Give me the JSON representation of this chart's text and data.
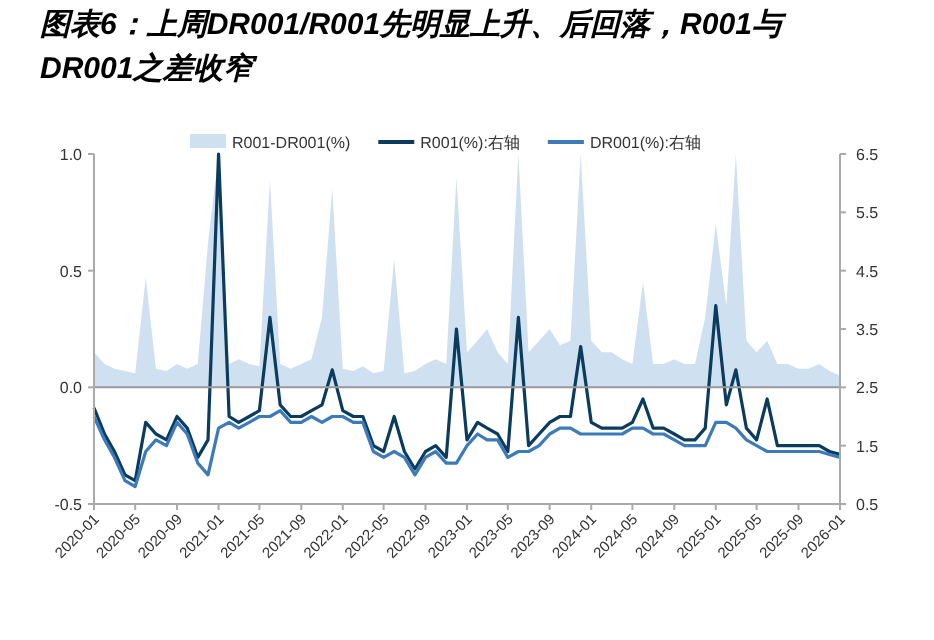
{
  "chart_data": {
    "type": "line",
    "title": "图表6：上周DR001/R001先明显上升、后回落，R001与DR001之差收窄",
    "x": [
      "2020-01",
      "2020-02",
      "2020-03",
      "2020-04",
      "2020-05",
      "2020-06",
      "2020-07",
      "2020-08",
      "2020-09",
      "2020-10",
      "2020-11",
      "2020-12",
      "2021-01",
      "2021-02",
      "2021-03",
      "2021-04",
      "2021-05",
      "2021-06",
      "2021-07",
      "2021-08",
      "2021-09",
      "2021-10",
      "2021-11",
      "2021-12",
      "2022-01",
      "2022-02",
      "2022-03",
      "2022-04",
      "2022-05",
      "2022-06",
      "2022-07",
      "2022-08",
      "2022-09",
      "2022-10",
      "2022-11",
      "2022-12",
      "2023-01",
      "2023-02",
      "2023-03",
      "2023-04",
      "2023-05",
      "2023-06",
      "2023-07",
      "2023-08",
      "2023-09",
      "2023-10",
      "2023-11",
      "2023-12",
      "2024-01",
      "2024-02",
      "2024-03",
      "2024-04",
      "2024-05",
      "2024-06",
      "2024-07",
      "2024-08",
      "2024-09",
      "2024-10",
      "2024-11",
      "2024-12",
      "2025-01",
      "2025-02",
      "2025-03",
      "2025-04",
      "2025-05",
      "2025-06",
      "2025-07",
      "2025-08",
      "2025-09",
      "2025-10",
      "2025-11",
      "2025-12",
      "2026-01"
    ],
    "series": [
      {
        "name": "R001-DR001(%)",
        "type": "area",
        "axis": "y",
        "color": "#cfe0f1",
        "values": [
          0.15,
          0.1,
          0.08,
          0.07,
          0.06,
          0.47,
          0.08,
          0.07,
          0.1,
          0.08,
          0.1,
          0.62,
          1.0,
          0.1,
          0.12,
          0.1,
          0.09,
          0.89,
          0.1,
          0.08,
          0.1,
          0.12,
          0.3,
          0.85,
          0.08,
          0.07,
          0.09,
          0.06,
          0.07,
          0.55,
          0.06,
          0.07,
          0.1,
          0.12,
          0.1,
          0.9,
          0.15,
          0.2,
          0.25,
          0.15,
          0.1,
          1.0,
          0.15,
          0.2,
          0.25,
          0.18,
          0.2,
          1.0,
          0.2,
          0.15,
          0.15,
          0.12,
          0.1,
          0.45,
          0.1,
          0.1,
          0.12,
          0.1,
          0.1,
          0.3,
          0.7,
          0.35,
          1.0,
          0.2,
          0.15,
          0.2,
          0.1,
          0.1,
          0.08,
          0.08,
          0.1,
          0.07,
          0.05
        ]
      },
      {
        "name": "R001(%):右轴",
        "axis": "y2",
        "color": "#0b3c5d",
        "values": [
          2.15,
          1.7,
          1.4,
          1.0,
          0.9,
          1.9,
          1.7,
          1.6,
          2.0,
          1.8,
          1.3,
          1.6,
          6.5,
          2.0,
          1.9,
          2.0,
          2.1,
          3.7,
          2.2,
          2.0,
          2.0,
          2.1,
          2.2,
          2.8,
          2.1,
          2.0,
          2.0,
          1.5,
          1.4,
          2.0,
          1.4,
          1.1,
          1.4,
          1.5,
          1.3,
          3.5,
          1.6,
          1.9,
          1.8,
          1.7,
          1.4,
          3.7,
          1.5,
          1.7,
          1.9,
          2.0,
          2.0,
          3.2,
          1.9,
          1.8,
          1.8,
          1.8,
          1.9,
          2.3,
          1.8,
          1.8,
          1.7,
          1.6,
          1.6,
          1.8,
          3.9,
          2.2,
          2.8,
          1.8,
          1.6,
          2.3,
          1.5,
          1.5,
          1.5,
          1.5,
          1.5,
          1.4,
          1.35
        ]
      },
      {
        "name": "DR001(%):右轴",
        "axis": "y2",
        "color": "#3d7ab8",
        "values": [
          2.0,
          1.6,
          1.3,
          0.9,
          0.8,
          1.4,
          1.6,
          1.5,
          1.9,
          1.7,
          1.2,
          1.0,
          1.8,
          1.9,
          1.8,
          1.9,
          2.0,
          2.0,
          2.1,
          1.9,
          1.9,
          2.0,
          1.9,
          2.0,
          2.0,
          1.9,
          1.9,
          1.4,
          1.3,
          1.4,
          1.3,
          1.0,
          1.3,
          1.4,
          1.2,
          1.2,
          1.5,
          1.7,
          1.6,
          1.6,
          1.3,
          1.4,
          1.4,
          1.5,
          1.7,
          1.8,
          1.8,
          1.7,
          1.7,
          1.7,
          1.7,
          1.7,
          1.8,
          1.8,
          1.7,
          1.7,
          1.6,
          1.5,
          1.5,
          1.5,
          1.9,
          1.9,
          1.8,
          1.6,
          1.5,
          1.4,
          1.4,
          1.4,
          1.4,
          1.4,
          1.4,
          1.35,
          1.3
        ]
      }
    ],
    "xlim": [
      "2020-01",
      "2026-01"
    ],
    "xticks": [
      "2020-01",
      "2020-05",
      "2020-09",
      "2021-01",
      "2021-05",
      "2021-09",
      "2022-01",
      "2022-05",
      "2022-09",
      "2023-01",
      "2023-05",
      "2023-09",
      "2024-01",
      "2024-05",
      "2024-09",
      "2025-01",
      "2025-05",
      "2025-09",
      "2026-01"
    ],
    "ylim": [
      -0.5,
      1.0
    ],
    "yticks": [
      {
        "value": 1.0,
        "label": "1.0"
      },
      {
        "value": 0.5,
        "label": "0.5"
      },
      {
        "value": 0.0,
        "label": "0.0"
      },
      {
        "value": -0.5,
        "label": "-0.5"
      }
    ],
    "y2lim": [
      0.5,
      6.5
    ],
    "y2ticks": [
      0.5,
      1.5,
      2.5,
      3.5,
      4.5,
      5.5,
      6.5
    ],
    "ref_lines": [
      {
        "axis": "y",
        "value": 0,
        "color": "#999999"
      }
    ],
    "legend": "top"
  }
}
